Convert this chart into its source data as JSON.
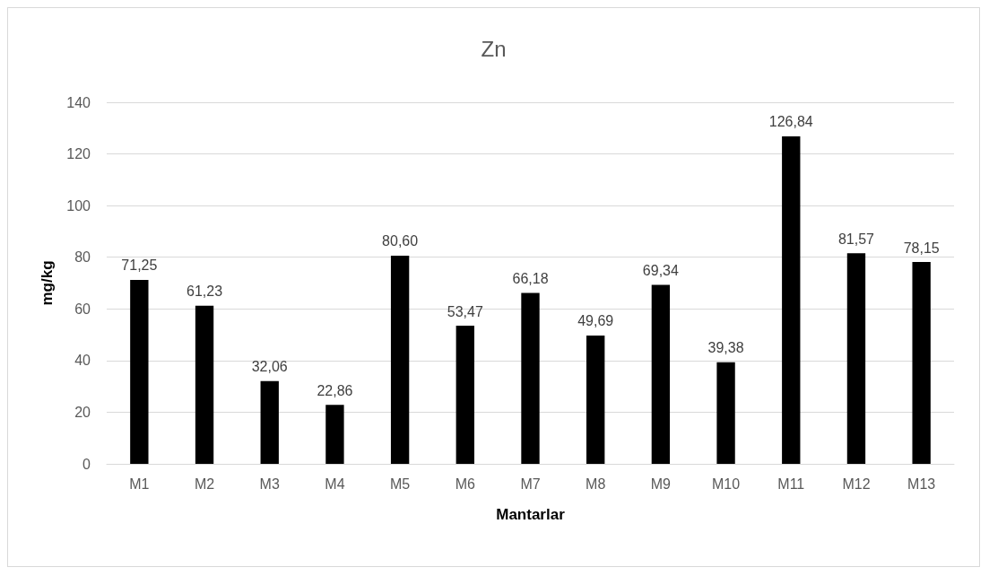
{
  "chart_data": {
    "type": "bar",
    "title": "Zn",
    "xlabel": "Mantarlar",
    "ylabel": "mg/kg",
    "categories": [
      "M1",
      "M2",
      "M3",
      "M4",
      "M5",
      "M6",
      "M7",
      "M8",
      "M9",
      "M10",
      "M11",
      "M12",
      "M13"
    ],
    "values": [
      71.25,
      61.23,
      32.06,
      22.86,
      80.6,
      53.47,
      66.18,
      49.69,
      69.34,
      39.38,
      126.84,
      81.57,
      78.15
    ],
    "value_labels": [
      "71,25",
      "61,23",
      "32,06",
      "22,86",
      "80,60",
      "53,47",
      "66,18",
      "49,69",
      "69,34",
      "39,38",
      "126,84",
      "81,57",
      "78,15"
    ],
    "color": "#000000",
    "ylim": [
      0,
      140
    ],
    "yticks": [
      0,
      20,
      40,
      60,
      80,
      100,
      120,
      140
    ],
    "grid": "y"
  }
}
